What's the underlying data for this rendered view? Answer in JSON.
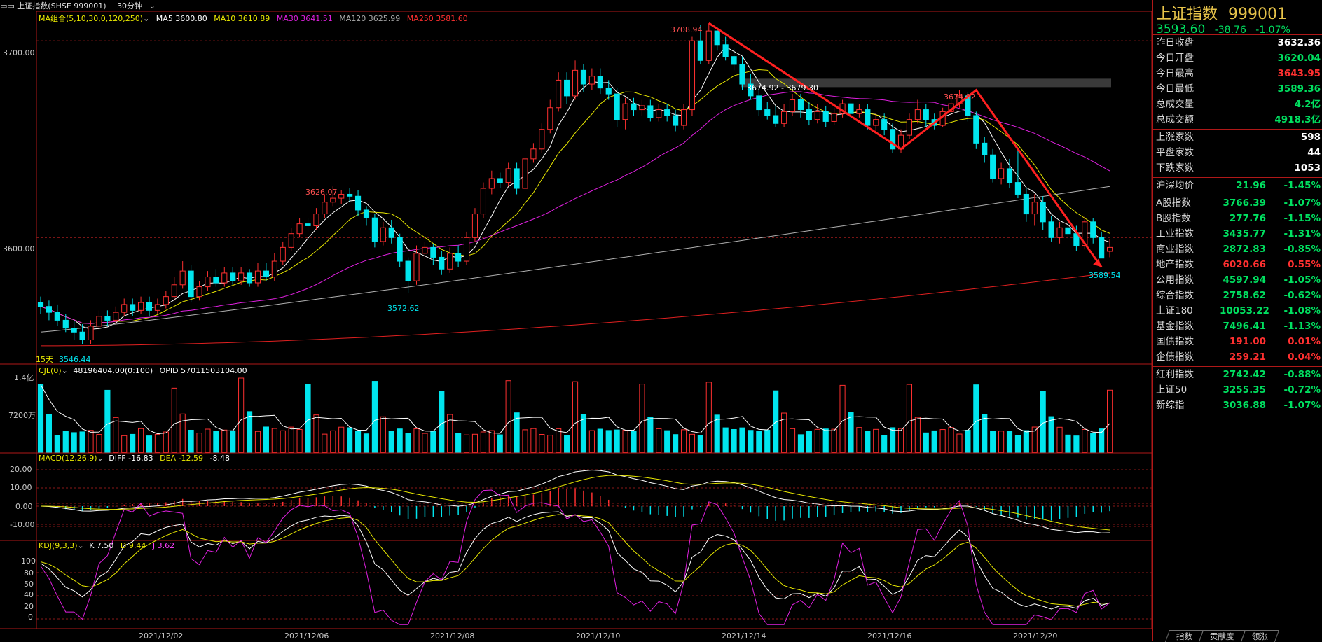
{
  "topbar": {
    "index_name": "上证指数(SHSE 999001)",
    "period": "30分钟",
    "ma_label": "MA组合(5,10,30,0,120,250)",
    "ma5": "MA5 3600.80",
    "ma10": "MA10 3610.89",
    "ma30": "MA30 3641.51",
    "ma120": "MA120 3625.99",
    "ma250": "MA250 3581.60"
  },
  "colors": {
    "up": "#ff3030",
    "down": "#00e5ee",
    "ma5": "#ffffff",
    "ma10": "#e8e800",
    "ma30": "#e020e0",
    "ma120": "#b0b0b0",
    "ma250": "#e02020"
  },
  "main_chart": {
    "price_ticks": [
      3700.0,
      3600.0
    ],
    "price_tick_labels": [
      "3700.00",
      "3600.00"
    ],
    "annotations": {
      "high": "3708.94",
      "local_high_1": "3626.07",
      "local_low_1": "3572.62",
      "range_band": "3674.92 - 3679.30",
      "local_high_2": "3674.92",
      "recent_low": "3589.54",
      "min_low": "3546.44",
      "period_count": "15天"
    }
  },
  "volume_panel": {
    "label": "CJL(0)",
    "value": "48196404.00(0:100)",
    "opid": "OPID 57011503104.00",
    "ticks": [
      "1.4亿",
      "7200万"
    ]
  },
  "macd_panel": {
    "label": "MACD(12,26,9)",
    "diff": "DIFF -16.83",
    "dea": "DEA -12.59",
    "macd": "-8.48",
    "ticks": [
      "20.00",
      "10.00",
      "0.00",
      "-10.00"
    ]
  },
  "kdj_panel": {
    "label": "KDJ(9,3,3)",
    "k": "K 7.50",
    "d": "D 9.44",
    "j": "J 3.62",
    "ticks": [
      "100",
      "80",
      "50",
      "40",
      "20",
      "0"
    ]
  },
  "chart_data": {
    "type": "candlestick",
    "x_dates": [
      "2021/12/02",
      "2021/12/06",
      "2021/12/08",
      "2021/12/10",
      "2021/12/14",
      "2021/12/16",
      "2021/12/20"
    ],
    "candles": [
      [
        3567,
        3565,
        3570,
        3561
      ],
      [
        3565,
        3562,
        3568,
        3558
      ],
      [
        3562,
        3558,
        3566,
        3555
      ],
      [
        3558,
        3554,
        3561,
        3552
      ],
      [
        3554,
        3552,
        3558,
        3548
      ],
      [
        3552,
        3548,
        3556,
        3546
      ],
      [
        3548,
        3555,
        3558,
        3546
      ],
      [
        3555,
        3560,
        3563,
        3553
      ],
      [
        3560,
        3558,
        3563,
        3555
      ],
      [
        3558,
        3562,
        3565,
        3556
      ],
      [
        3562,
        3566,
        3569,
        3560
      ],
      [
        3566,
        3563,
        3569,
        3560
      ],
      [
        3563,
        3567,
        3570,
        3561
      ],
      [
        3567,
        3563,
        3570,
        3560
      ],
      [
        3563,
        3566,
        3569,
        3561
      ],
      [
        3566,
        3570,
        3573,
        3564
      ],
      [
        3570,
        3576,
        3580,
        3568
      ],
      [
        3576,
        3583,
        3588,
        3574
      ],
      [
        3583,
        3570,
        3586,
        3567
      ],
      [
        3570,
        3575,
        3578,
        3568
      ],
      [
        3575,
        3580,
        3583,
        3573
      ],
      [
        3580,
        3577,
        3584,
        3575
      ],
      [
        3577,
        3582,
        3585,
        3575
      ],
      [
        3582,
        3578,
        3585,
        3576
      ],
      [
        3578,
        3582,
        3585,
        3576
      ],
      [
        3582,
        3577,
        3584,
        3575
      ],
      [
        3577,
        3583,
        3587,
        3575
      ],
      [
        3583,
        3580,
        3587,
        3578
      ],
      [
        3580,
        3588,
        3592,
        3578
      ],
      [
        3588,
        3595,
        3598,
        3586
      ],
      [
        3595,
        3602,
        3605,
        3593
      ],
      [
        3602,
        3607,
        3610,
        3600
      ],
      [
        3607,
        3606,
        3610,
        3603
      ],
      [
        3606,
        3612,
        3615,
        3604
      ],
      [
        3612,
        3618,
        3622,
        3610
      ],
      [
        3618,
        3620,
        3626,
        3616
      ],
      [
        3620,
        3622,
        3624,
        3617
      ],
      [
        3622,
        3621,
        3625,
        3618
      ],
      [
        3621,
        3614,
        3624,
        3611
      ],
      [
        3614,
        3610,
        3616,
        3606
      ],
      [
        3610,
        3598,
        3612,
        3595
      ],
      [
        3598,
        3605,
        3608,
        3596
      ],
      [
        3605,
        3600,
        3609,
        3597
      ],
      [
        3600,
        3588,
        3602,
        3585
      ],
      [
        3588,
        3578,
        3590,
        3572
      ],
      [
        3578,
        3592,
        3596,
        3576
      ],
      [
        3592,
        3595,
        3598,
        3589
      ],
      [
        3595,
        3590,
        3597,
        3586
      ],
      [
        3590,
        3584,
        3593,
        3581
      ],
      [
        3584,
        3592,
        3595,
        3582
      ],
      [
        3592,
        3588,
        3596,
        3585
      ],
      [
        3588,
        3600,
        3603,
        3586
      ],
      [
        3600,
        3612,
        3615,
        3598
      ],
      [
        3612,
        3625,
        3628,
        3610
      ],
      [
        3625,
        3630,
        3634,
        3622
      ],
      [
        3630,
        3628,
        3633,
        3625
      ],
      [
        3628,
        3635,
        3638,
        3626
      ],
      [
        3635,
        3625,
        3638,
        3622
      ],
      [
        3625,
        3640,
        3643,
        3623
      ],
      [
        3640,
        3645,
        3648,
        3638
      ],
      [
        3645,
        3655,
        3658,
        3643
      ],
      [
        3655,
        3666,
        3670,
        3653
      ],
      [
        3666,
        3680,
        3684,
        3664
      ],
      [
        3680,
        3672,
        3684,
        3668
      ],
      [
        3672,
        3685,
        3690,
        3670
      ],
      [
        3685,
        3678,
        3688,
        3674
      ],
      [
        3678,
        3682,
        3686,
        3675
      ],
      [
        3682,
        3676,
        3686,
        3673
      ],
      [
        3676,
        3673,
        3680,
        3670
      ],
      [
        3673,
        3660,
        3676,
        3656
      ],
      [
        3660,
        3668,
        3671,
        3655
      ],
      [
        3668,
        3665,
        3671,
        3662
      ],
      [
        3665,
        3667,
        3670,
        3662
      ],
      [
        3667,
        3661,
        3670,
        3659
      ],
      [
        3661,
        3665,
        3668,
        3659
      ],
      [
        3665,
        3662,
        3668,
        3659
      ],
      [
        3662,
        3657,
        3665,
        3654
      ],
      [
        3657,
        3665,
        3668,
        3655
      ],
      [
        3665,
        3700,
        3702,
        3662
      ],
      [
        3700,
        3690,
        3708,
        3688
      ],
      [
        3690,
        3705,
        3708.94,
        3688
      ],
      [
        3705,
        3698,
        3707,
        3695
      ],
      [
        3698,
        3692,
        3702,
        3690
      ],
      [
        3692,
        3688,
        3696,
        3685
      ],
      [
        3688,
        3678,
        3692,
        3675
      ],
      [
        3678,
        3672,
        3683,
        3670
      ],
      [
        3672,
        3665,
        3676,
        3662
      ],
      [
        3665,
        3662,
        3669,
        3660
      ],
      [
        3662,
        3658,
        3667,
        3656
      ],
      [
        3658,
        3664,
        3668,
        3656
      ],
      [
        3664,
        3670,
        3673,
        3662
      ],
      [
        3670,
        3665,
        3673,
        3661
      ],
      [
        3665,
        3660,
        3669,
        3657
      ],
      [
        3660,
        3664,
        3668,
        3658
      ],
      [
        3664,
        3659,
        3667,
        3656
      ],
      [
        3659,
        3663,
        3666,
        3657
      ],
      [
        3663,
        3668,
        3670,
        3661
      ],
      [
        3668,
        3663,
        3671,
        3660
      ],
      [
        3663,
        3665,
        3668,
        3661
      ],
      [
        3665,
        3657,
        3668,
        3655
      ],
      [
        3657,
        3660,
        3663,
        3654
      ],
      [
        3660,
        3655,
        3663,
        3652
      ],
      [
        3655,
        3645,
        3658,
        3643
      ],
      [
        3645,
        3652,
        3655,
        3643
      ],
      [
        3652,
        3660,
        3663,
        3650
      ],
      [
        3660,
        3665,
        3670,
        3658
      ],
      [
        3665,
        3660,
        3668,
        3656
      ],
      [
        3660,
        3657,
        3663,
        3655
      ],
      [
        3657,
        3664,
        3666,
        3656
      ],
      [
        3664,
        3668,
        3672,
        3662
      ],
      [
        3668,
        3672,
        3674.92,
        3666
      ],
      [
        3672,
        3662,
        3674,
        3659
      ],
      [
        3662,
        3648,
        3664,
        3645
      ],
      [
        3648,
        3642,
        3651,
        3638
      ],
      [
        3642,
        3630,
        3645,
        3628
      ],
      [
        3630,
        3635,
        3638,
        3627
      ],
      [
        3635,
        3628,
        3640,
        3625
      ],
      [
        3628,
        3622,
        3645,
        3620
      ],
      [
        3622,
        3612,
        3625,
        3608
      ],
      [
        3612,
        3618,
        3622,
        3606
      ],
      [
        3618,
        3608,
        3621,
        3604
      ],
      [
        3608,
        3600,
        3611,
        3598
      ],
      [
        3600,
        3605,
        3608,
        3597
      ],
      [
        3605,
        3602,
        3610,
        3599
      ],
      [
        3602,
        3596,
        3606,
        3593
      ],
      [
        3596,
        3608,
        3611,
        3594
      ],
      [
        3608,
        3600,
        3610,
        3597
      ],
      [
        3600,
        3589.54,
        3603,
        3589.54
      ],
      [
        3593,
        3595,
        3599,
        3590
      ]
    ],
    "ylim": [
      3540,
      3715
    ]
  },
  "sidebar": {
    "title": "上证指数",
    "code": "999001",
    "price": "3593.60",
    "change": "-38.76",
    "change_pct": "-1.07%",
    "quote_rows": [
      {
        "name": "昨日收盘",
        "value": "3632.36",
        "color": "white"
      },
      {
        "name": "今日开盘",
        "value": "3620.04",
        "color": "green"
      },
      {
        "name": "今日最高",
        "value": "3643.95",
        "color": "red"
      },
      {
        "name": "今日最低",
        "value": "3589.36",
        "color": "green"
      },
      {
        "name": "总成交量",
        "value": "4.2亿",
        "color": "green"
      },
      {
        "name": "总成交额",
        "value": "4918.3亿",
        "color": "green"
      }
    ],
    "breadth_rows": [
      {
        "name": "上涨家数",
        "value": "598",
        "color": "white"
      },
      {
        "name": "平盘家数",
        "value": "44",
        "color": "white"
      },
      {
        "name": "下跌家数",
        "value": "1053",
        "color": "white"
      }
    ],
    "avg_row": {
      "name": "沪深均价",
      "value": "21.96",
      "pct": "-1.45%",
      "color": "green"
    },
    "index_rows": [
      {
        "name": "A股指数",
        "value": "3766.39",
        "pct": "-1.07%",
        "color": "green"
      },
      {
        "name": "B股指数",
        "value": "277.76",
        "pct": "-1.15%",
        "color": "green"
      },
      {
        "name": "工业指数",
        "value": "3435.77",
        "pct": "-1.31%",
        "color": "green"
      },
      {
        "name": "商业指数",
        "value": "2872.83",
        "pct": "-0.85%",
        "color": "green"
      },
      {
        "name": "地产指数",
        "value": "6020.66",
        "pct": "0.55%",
        "color": "red"
      },
      {
        "name": "公用指数",
        "value": "4597.94",
        "pct": "-1.05%",
        "color": "green"
      },
      {
        "name": "综合指数",
        "value": "2758.62",
        "pct": "-0.62%",
        "color": "green"
      },
      {
        "name": "上证180",
        "value": "10053.22",
        "pct": "-1.08%",
        "color": "green"
      },
      {
        "name": "基金指数",
        "value": "7496.41",
        "pct": "-1.13%",
        "color": "green"
      },
      {
        "name": "国债指数",
        "value": "191.00",
        "pct": "0.01%",
        "color": "red"
      },
      {
        "name": "企债指数",
        "value": "259.21",
        "pct": "0.04%",
        "color": "red"
      },
      {
        "name": "红利指数",
        "value": "2742.42",
        "pct": "-0.88%",
        "color": "green"
      },
      {
        "name": "上证50",
        "value": "3255.35",
        "pct": "-0.72%",
        "color": "green"
      },
      {
        "name": "新综指",
        "value": "3036.88",
        "pct": "-1.07%",
        "color": "green"
      }
    ],
    "tabs": [
      "指数",
      "贡献度",
      "领涨"
    ]
  }
}
